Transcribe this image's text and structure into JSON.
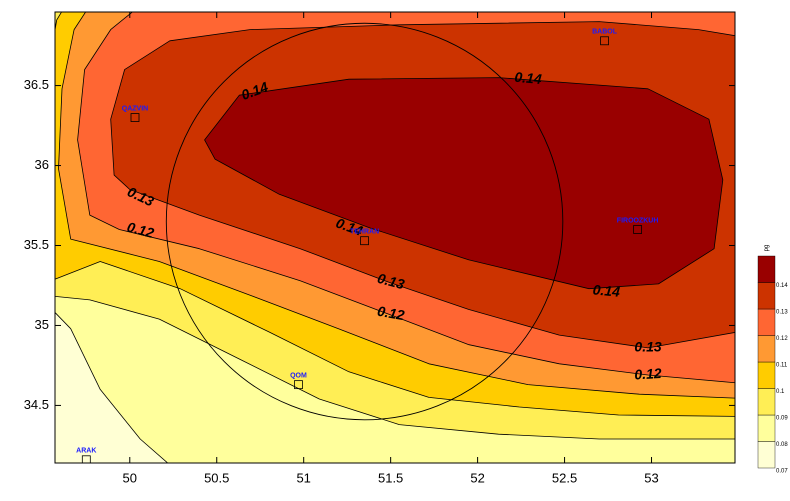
{
  "chart_data": {
    "type": "contour",
    "xlim": [
      49.57,
      53.48
    ],
    "ylim": [
      34.14,
      36.96
    ],
    "xticks": [
      50,
      50.5,
      51,
      51.5,
      52,
      52.5,
      53
    ],
    "yticks": [
      34.5,
      35,
      35.5,
      36,
      36.5
    ],
    "levels": [
      0.07,
      0.08,
      0.09,
      0.1,
      0.11,
      0.12,
      0.13,
      0.14
    ],
    "colors": [
      "#ffffd4",
      "#ffff9c",
      "#ffee55",
      "#ffcc00",
      "#ff9933",
      "#ff6633",
      "#cc3300",
      "#990000"
    ],
    "colorbar_label": "pg",
    "regions": [
      {
        "level": 0.08,
        "points": [
          [
            49.5,
            35.16
          ],
          [
            49.66,
            34.98
          ],
          [
            49.83,
            34.6
          ],
          [
            50.06,
            34.29
          ],
          [
            50.26,
            34.1
          ],
          [
            53.6,
            34.1
          ],
          [
            53.6,
            37.0
          ],
          [
            49.5,
            37.0
          ]
        ]
      },
      {
        "level": 0.09,
        "points": [
          [
            49.5,
            35.19
          ],
          [
            49.77,
            35.16
          ],
          [
            50.17,
            35.04
          ],
          [
            50.63,
            34.79
          ],
          [
            51.09,
            34.54
          ],
          [
            51.55,
            34.38
          ],
          [
            52.12,
            34.32
          ],
          [
            52.7,
            34.29
          ],
          [
            53.6,
            34.29
          ],
          [
            53.6,
            37.0
          ],
          [
            49.5,
            37.0
          ]
        ]
      },
      {
        "level": 0.1,
        "points": [
          [
            49.5,
            35.26
          ],
          [
            49.83,
            35.4
          ],
          [
            50.29,
            35.23
          ],
          [
            50.8,
            34.96
          ],
          [
            51.26,
            34.71
          ],
          [
            51.72,
            34.55
          ],
          [
            52.24,
            34.49
          ],
          [
            52.81,
            34.44
          ],
          [
            53.6,
            34.43
          ],
          [
            53.6,
            37.0
          ],
          [
            49.63,
            37.0
          ],
          [
            49.58,
            36.91
          ],
          [
            49.54,
            36.66
          ]
        ]
      },
      {
        "level": 0.11,
        "points": [
          [
            49.66,
            35.54
          ],
          [
            50.17,
            35.4
          ],
          [
            50.69,
            35.19
          ],
          [
            51.2,
            34.98
          ],
          [
            51.72,
            34.76
          ],
          [
            52.29,
            34.63
          ],
          [
            52.93,
            34.57
          ],
          [
            53.6,
            34.54
          ],
          [
            53.6,
            37.0
          ],
          [
            49.77,
            37.0
          ],
          [
            49.68,
            36.85
          ],
          [
            49.61,
            36.48
          ],
          [
            49.59,
            35.98
          ]
        ]
      },
      {
        "level": 0.12,
        "points": [
          [
            49.77,
            35.69
          ],
          [
            49.94,
            35.6
          ],
          [
            50.4,
            35.48
          ],
          [
            50.98,
            35.28
          ],
          [
            51.49,
            35.07
          ],
          [
            51.95,
            34.88
          ],
          [
            52.47,
            34.76
          ],
          [
            52.98,
            34.69
          ],
          [
            53.6,
            34.63
          ],
          [
            53.6,
            37.0
          ],
          [
            50.06,
            37.0
          ],
          [
            49.89,
            36.85
          ],
          [
            49.74,
            36.6
          ],
          [
            49.7,
            36.16
          ]
        ]
      },
      {
        "level": 0.13,
        "points": [
          [
            49.91,
            35.94
          ],
          [
            50.0,
            35.85
          ],
          [
            50.4,
            35.69
          ],
          [
            50.98,
            35.48
          ],
          [
            51.49,
            35.27
          ],
          [
            51.95,
            35.1
          ],
          [
            52.47,
            34.94
          ],
          [
            52.98,
            34.86
          ],
          [
            53.6,
            34.98
          ],
          [
            53.6,
            36.79
          ],
          [
            53.27,
            36.85
          ],
          [
            52.7,
            36.9
          ],
          [
            51.55,
            36.88
          ],
          [
            50.69,
            36.85
          ],
          [
            50.23,
            36.78
          ],
          [
            49.97,
            36.6
          ],
          [
            49.89,
            36.29
          ]
        ]
      },
      {
        "level": 0.14,
        "points": [
          [
            50.43,
            36.16
          ],
          [
            50.63,
            36.44
          ],
          [
            51.26,
            36.54
          ],
          [
            52.12,
            36.55
          ],
          [
            52.98,
            36.48
          ],
          [
            53.33,
            36.29
          ],
          [
            53.41,
            35.91
          ],
          [
            53.36,
            35.48
          ],
          [
            53.04,
            35.26
          ],
          [
            52.64,
            35.23
          ],
          [
            51.95,
            35.41
          ],
          [
            51.38,
            35.61
          ],
          [
            50.86,
            35.82
          ],
          [
            50.49,
            36.04
          ]
        ]
      }
    ],
    "contour_labels": [
      {
        "text": "0.14",
        "x": 50.72,
        "y": 36.46
      },
      {
        "text": "0.14",
        "x": 52.29,
        "y": 36.54
      },
      {
        "text": "0.13",
        "x": 50.06,
        "y": 35.8
      },
      {
        "text": "0.12",
        "x": 50.06,
        "y": 35.59
      },
      {
        "text": "0.14",
        "x": 51.26,
        "y": 35.61
      },
      {
        "text": "0.13",
        "x": 51.5,
        "y": 35.27
      },
      {
        "text": "0.12",
        "x": 51.5,
        "y": 35.07
      },
      {
        "text": "0.14",
        "x": 52.74,
        "y": 35.21
      },
      {
        "text": "0.13",
        "x": 52.98,
        "y": 34.86
      },
      {
        "text": "0.12",
        "x": 52.98,
        "y": 34.69
      }
    ],
    "cities": [
      {
        "name": "QAZVIN",
        "x": 50.03,
        "y": 36.3
      },
      {
        "name": "BABOL",
        "x": 52.73,
        "y": 36.78
      },
      {
        "name": "TEHRAN",
        "x": 51.35,
        "y": 35.53
      },
      {
        "name": "FIROOZKUH",
        "x": 52.92,
        "y": 35.6
      },
      {
        "name": "QOM",
        "x": 50.97,
        "y": 34.63
      },
      {
        "name": "ARAK",
        "x": 49.75,
        "y": 34.16
      }
    ],
    "circle": {
      "x": 51.35,
      "y": 35.65,
      "r": 1.14
    }
  }
}
